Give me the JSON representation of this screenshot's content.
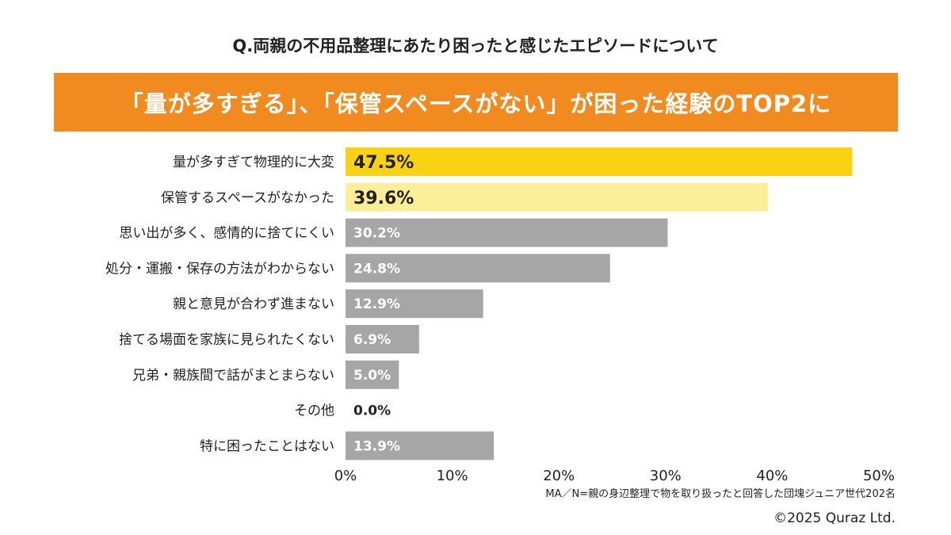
{
  "question": "Q.両親の不用品整理にあたり困ったと感じたエピソードについて",
  "banner": "「量が多すぎる」、「保管スペースがない」が困った経験のTOP2に",
  "note": "MA／N=親の身辺整理で物を取り扱ったと回答した団塊ジュニア世代202名",
  "copyright": "©2025 Quraz Ltd.",
  "colors": {
    "banner": "#F18A1F",
    "top1": "#F8D213",
    "top2": "#FCEE98",
    "other": "#A6A6A6"
  },
  "chart_data": {
    "type": "bar",
    "orientation": "horizontal",
    "categories": [
      "量が多すぎて物理的に大変",
      "保管するスペースがなかった",
      "思い出が多く、感情的に捨てにくい",
      "処分・運搬・保存の方法がわからない",
      "親と意見が合わず進まない",
      "捨てる場面を家族に見られたくない",
      "兄弟・親族間で話がまとまらない",
      "その他",
      "特に困ったことはない"
    ],
    "values": [
      47.5,
      39.6,
      30.2,
      24.8,
      12.9,
      6.9,
      5.0,
      0.0,
      13.9
    ],
    "data_labels": [
      "47.5%",
      "39.6%",
      "30.2%",
      "24.8%",
      "12.9%",
      "6.9%",
      "5.0%",
      "0.0%",
      "13.9%"
    ],
    "xlim": [
      0,
      50
    ],
    "xticks": [
      "0%",
      "10%",
      "20%",
      "30%",
      "40%",
      "50%"
    ],
    "grid": false
  }
}
